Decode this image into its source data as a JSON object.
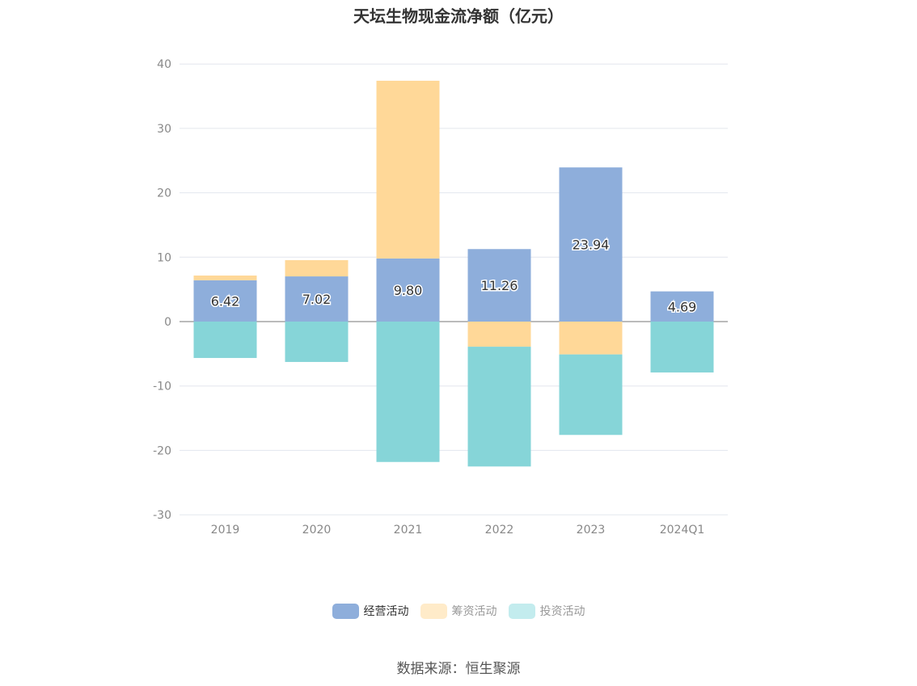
{
  "chart_data": {
    "type": "bar",
    "stacked": true,
    "title": "天坛生物现金流净额（亿元）",
    "categories": [
      "2019",
      "2020",
      "2021",
      "2022",
      "2023",
      "2024Q1"
    ],
    "ylim": [
      -30,
      40
    ],
    "yticks": [
      -30,
      -20,
      -10,
      0,
      10,
      20,
      30,
      40
    ],
    "grid": true,
    "legend_position": "bottom",
    "series": [
      {
        "name": "经营活动",
        "color": "#8eaedb",
        "values": [
          6.42,
          7.02,
          9.8,
          11.26,
          23.94,
          4.69
        ],
        "labels": [
          "6.42",
          "7.02",
          "9.80",
          "11.26",
          "23.94",
          "4.69"
        ]
      },
      {
        "name": "筹资活动",
        "color": "#ffd898",
        "legend_color": "#ffebc9",
        "values": [
          0.73,
          2.52,
          27.6,
          -3.9,
          -5.1,
          0
        ]
      },
      {
        "name": "投资活动",
        "color": "#86d5d8",
        "legend_color": "#c3ecee",
        "values": [
          -5.65,
          -6.27,
          -21.8,
          -18.6,
          -12.5,
          -7.9
        ]
      }
    ]
  },
  "source": "数据来源：恒生聚源"
}
